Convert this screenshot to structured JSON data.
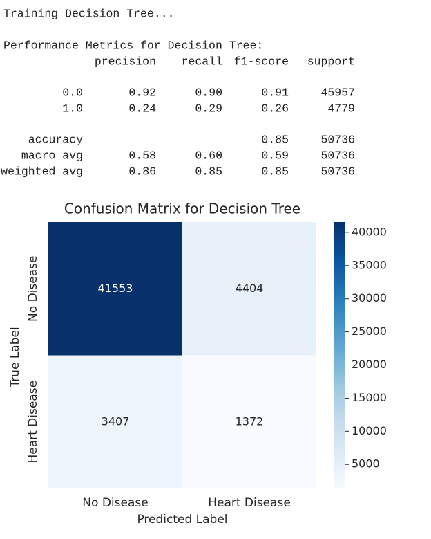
{
  "output": {
    "lines": [
      "Training Decision Tree...",
      "Performance Metrics for Decision Tree:"
    ],
    "report": {
      "header": [
        "precision",
        "recall",
        "f1-score",
        "support"
      ],
      "rows": [
        {
          "name": "0.0",
          "precision": "0.92",
          "recall": "0.90",
          "f1-score": "0.91",
          "support": "45957"
        },
        {
          "name": "1.0",
          "precision": "0.24",
          "recall": "0.29",
          "f1-score": "0.26",
          "support": "4779"
        },
        {
          "name": "accuracy",
          "f1-score": "0.85",
          "support": "50736"
        },
        {
          "name": "macro avg",
          "precision": "0.58",
          "recall": "0.60",
          "f1-score": "0.59",
          "support": "50736"
        },
        {
          "name": "weighted avg",
          "precision": "0.86",
          "recall": "0.85",
          "f1-score": "0.85",
          "support": "50736"
        }
      ]
    }
  },
  "chart_data": {
    "type": "heatmap",
    "title": "Confusion Matrix for Decision Tree",
    "x_label": "Predicted Label",
    "y_label": "True Label",
    "x_categories": [
      "No Disease",
      "Heart Disease"
    ],
    "y_categories": [
      "No Disease",
      "Heart Disease"
    ],
    "values": [
      [
        41553,
        4404
      ],
      [
        3407,
        1372
      ]
    ],
    "colormap": "Blues",
    "zlim": [
      1372,
      41553
    ],
    "zticks": [
      5000,
      10000,
      15000,
      20000,
      25000,
      30000,
      35000,
      40000
    ]
  }
}
